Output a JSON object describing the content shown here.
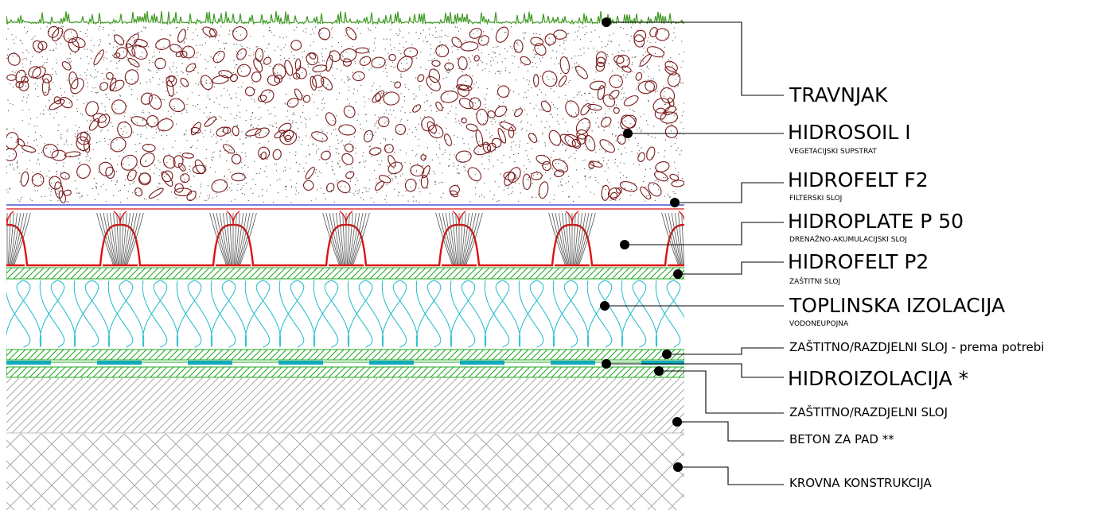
{
  "layers": [
    {
      "id": "travnjak",
      "title": "TRAVNJAK",
      "subtitle": ""
    },
    {
      "id": "hidrosoil",
      "title": "HIDROSOIL I",
      "subtitle": "VEGETACIJSKI SUPSTRAT"
    },
    {
      "id": "hidrofelt-f2",
      "title": "HIDROFELT F2",
      "subtitle": "FILTERSKI SLOJ"
    },
    {
      "id": "hidroplate",
      "title": "HIDROPLATE P 50",
      "subtitle": "DRENAŽNO-AKUMULACIJSKI SLOJ"
    },
    {
      "id": "hidrofelt-p2",
      "title": "HIDROFELT P2",
      "subtitle": "ZAŠTITNI SLOJ"
    },
    {
      "id": "toplinska",
      "title": "TOPLINSKA IZOLACIJA",
      "subtitle": "VODONEUPOJNA"
    },
    {
      "id": "zastitno-1",
      "title": "ZAŠTITNO/RAZDJELNI SLOJ - prema potrebi",
      "subtitle": ""
    },
    {
      "id": "hidroizolacija",
      "title": "HIDROIZOLACIJA *",
      "subtitle": ""
    },
    {
      "id": "zastitno-2",
      "title": "ZAŠTITNO/RAZDJELNI SLOJ",
      "subtitle": ""
    },
    {
      "id": "beton",
      "title": "BETON ZA PAD **",
      "subtitle": ""
    },
    {
      "id": "krovna",
      "title": "KROVNA KONSTRUKCIJA",
      "subtitle": ""
    }
  ],
  "colors": {
    "grass": "#3e9a22",
    "soil_stone": "#7a1a1a",
    "filter_line": "#2233cc",
    "drain_red": "#e01010",
    "hatch_green": "#22aa22",
    "insulation": "#22bbcc",
    "membrane": "#11aabb",
    "concrete": "#888888",
    "leader": "#000000"
  }
}
